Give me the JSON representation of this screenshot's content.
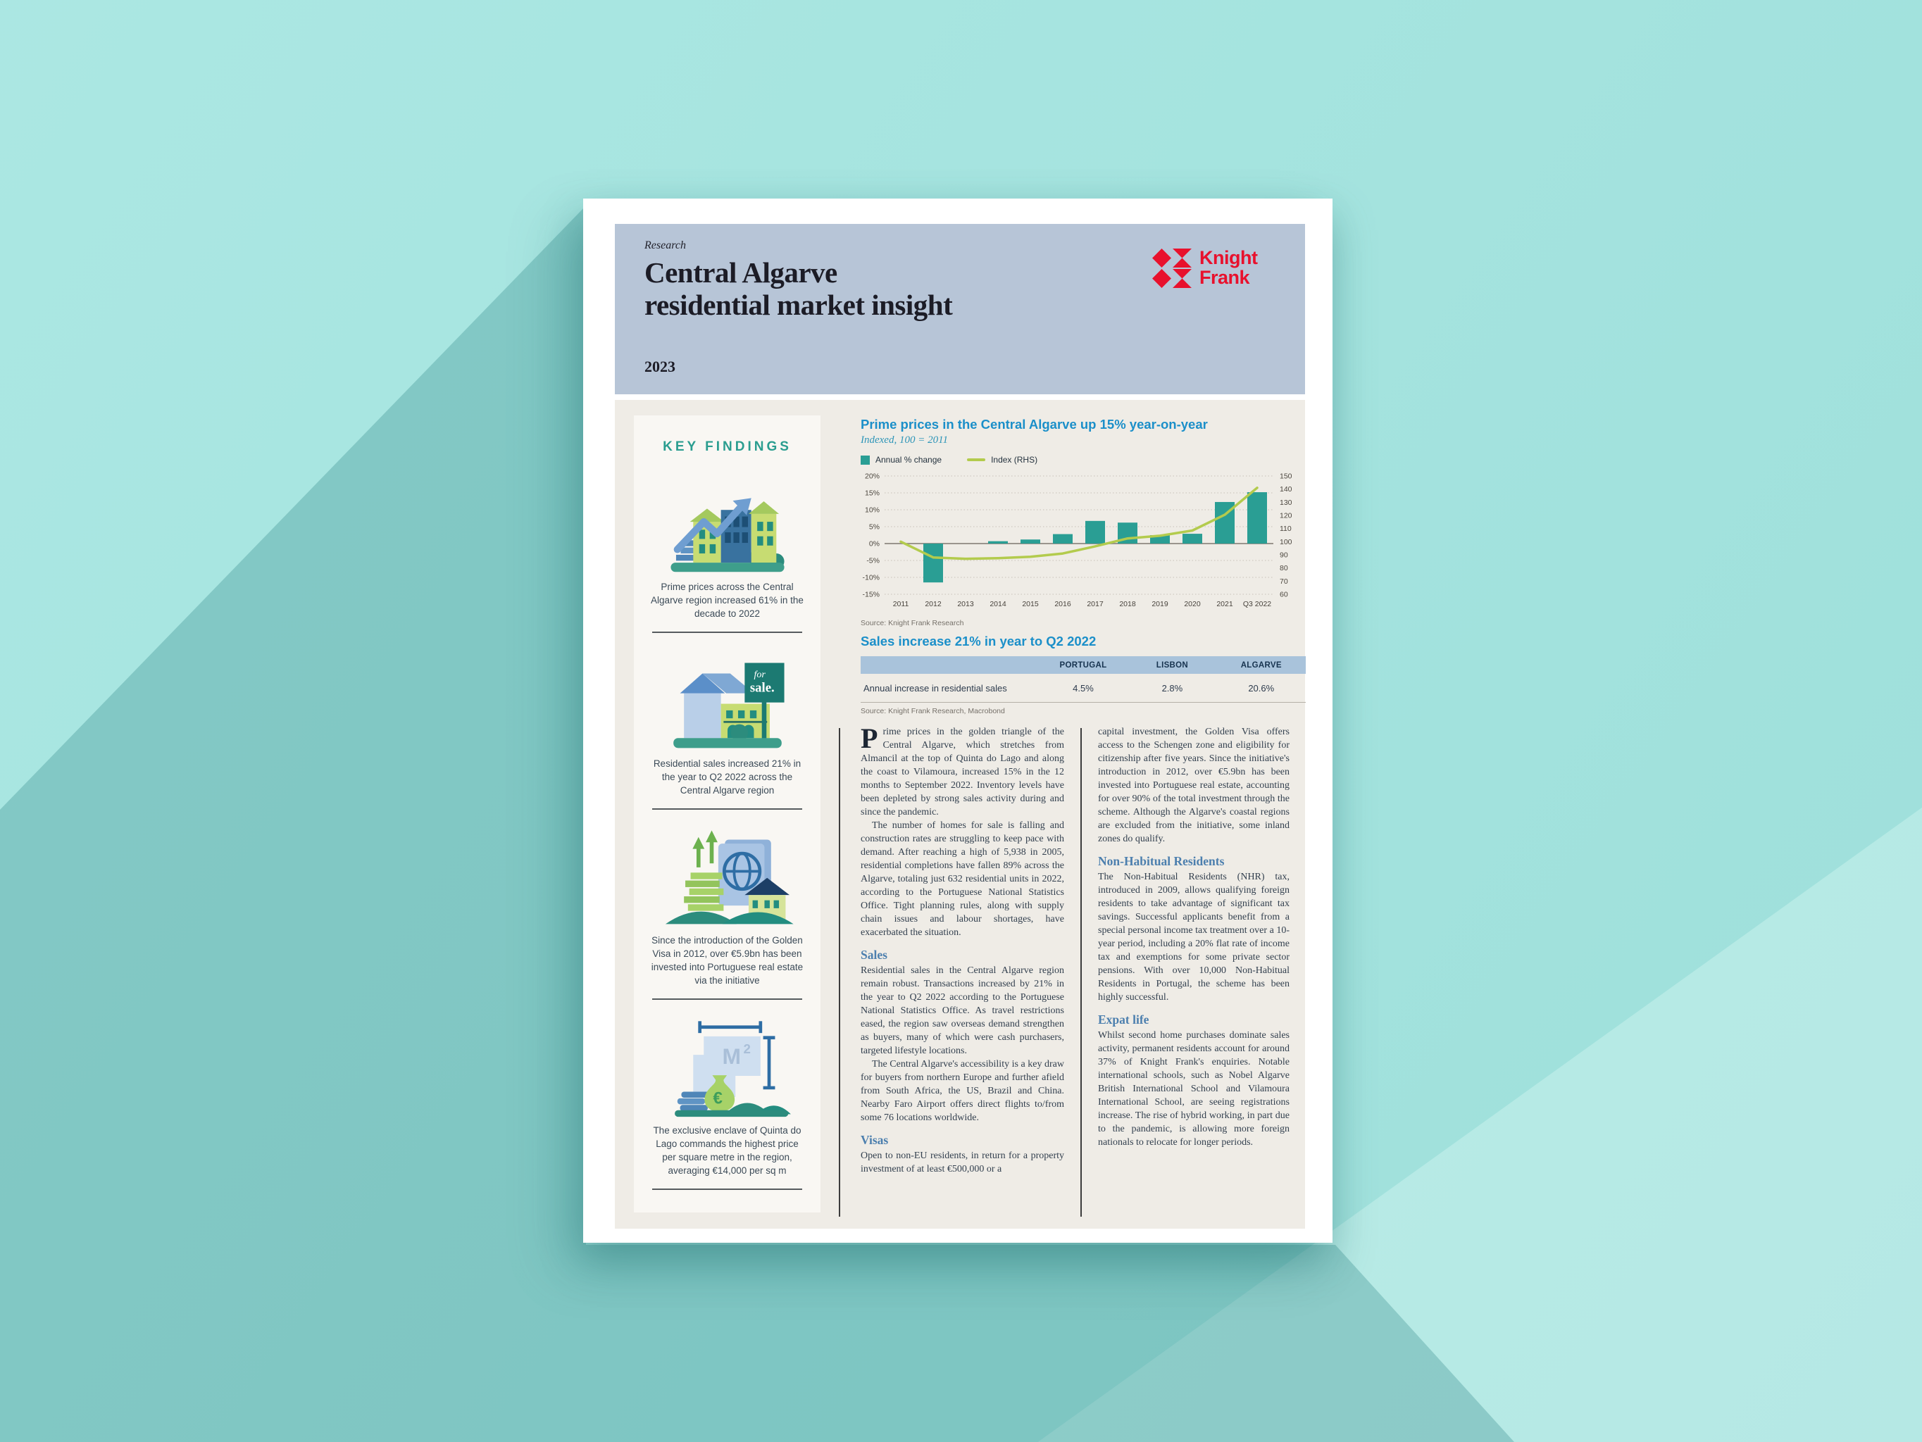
{
  "header": {
    "eyebrow": "Research",
    "title_line1": "Central Algarve",
    "title_line2": "residential market insight",
    "year": "2023",
    "logo_line1": "Knight",
    "logo_line2": "Frank"
  },
  "colors": {
    "brand_red": "#e8112d",
    "teal_bar": "#2a9e94",
    "index_line_green": "#b3cb4d",
    "heading_blue": "#1b8fc9",
    "section_heading_blue": "#4c7fae",
    "key_findings_teal": "#2a9d8f",
    "masthead_band": "#b7c5d7",
    "table_header_band": "#a9c3db",
    "page_cream": "#efece6",
    "background_turquoise": "#a6e6e1"
  },
  "sidebar": {
    "heading": "KEY FINDINGS",
    "sign": {
      "line1": "for",
      "line2": "sale."
    },
    "m2": {
      "base": "M",
      "sup": "2"
    },
    "euro": "€",
    "items": [
      {
        "icon": "houses-growth-arrow-icon",
        "text": "Prime prices across the Central Algarve region increased 61% in the decade to 2022"
      },
      {
        "icon": "house-for-sale-icon",
        "text": "Residential sales increased 21% in the year to Q2 2022 across the Central Algarve region"
      },
      {
        "icon": "golden-visa-investment-icon",
        "text": "Since the introduction of the Golden Visa in 2012, over €5.9bn has been invested into Portuguese real estate via the initiative"
      },
      {
        "icon": "price-per-square-metre-icon",
        "text": "The exclusive enclave of Quinta do Lago commands the highest price per square metre in the region, averaging €14,000 per sq m"
      }
    ]
  },
  "chart": {
    "title": "Prime prices in the Central Algarve up 15% year-on-year",
    "subtitle": "Indexed, 100 = 2011",
    "legend": [
      {
        "label": "Annual % change",
        "swatch": "square"
      },
      {
        "label": "Index (RHS)",
        "swatch": "line"
      }
    ],
    "source": "Source: Knight Frank Research"
  },
  "chart_data": {
    "type": "bar+line",
    "title": "Prime prices in the Central Algarve up 15% year-on-year",
    "subtitle": "Indexed, 100 = 2011",
    "categories": [
      "2011",
      "2012",
      "2013",
      "2014",
      "2015",
      "2016",
      "2017",
      "2018",
      "2019",
      "2020",
      "2021",
      "Q3 2022"
    ],
    "series": [
      {
        "name": "Annual % change",
        "type": "bar",
        "axis": "left",
        "color": "#2a9e94",
        "values": [
          0,
          -11.5,
          0,
          0.7,
          1.2,
          2.8,
          6.7,
          6.2,
          2.5,
          2.9,
          12.3,
          15.2
        ]
      },
      {
        "name": "Index (RHS)",
        "type": "line",
        "axis": "right",
        "color": "#b3cb4d",
        "values": [
          100,
          88,
          87,
          87.5,
          88.5,
          91,
          96.5,
          102.5,
          104.5,
          108.5,
          120.5,
          141
        ]
      }
    ],
    "left_axis": {
      "ticks": [
        "20%",
        "15%",
        "10%",
        "5%",
        "0%",
        "-5%",
        "-10%",
        "-15%"
      ],
      "tick_values": [
        20,
        15,
        10,
        5,
        0,
        -5,
        -10,
        -15
      ],
      "min": -15,
      "max": 20
    },
    "right_axis": {
      "ticks": [
        "150",
        "140",
        "130",
        "120",
        "110",
        "100",
        "90",
        "80",
        "70",
        "60"
      ],
      "tick_values": [
        150,
        140,
        130,
        120,
        110,
        100,
        90,
        80,
        70,
        60
      ],
      "min": 60,
      "max": 150
    },
    "grid": true,
    "legend_position": "top-left"
  },
  "sales_table": {
    "heading": "Sales increase 21% in year to Q2 2022",
    "columns": [
      "",
      "PORTUGAL",
      "LISBON",
      "ALGARVE"
    ],
    "rows": [
      {
        "label": "Annual increase in residential sales",
        "values": [
          "4.5%",
          "2.8%",
          "20.6%"
        ]
      }
    ],
    "source": "Source: Knight Frank Research, Macrobond"
  },
  "article": {
    "col1": [
      {
        "type": "paragraph",
        "dropcap": "P",
        "text": "rime prices in the golden triangle of the Central Algarve, which stretches from Almancil at the top of Quinta do Lago and along the coast to Vilamoura, increased 15% in the 12 months to September 2022. Inventory levels have been depleted by strong sales activity during and since the pandemic."
      },
      {
        "type": "paragraph",
        "text": "The number of homes for sale is falling and construction rates are struggling to keep pace with demand. After reaching a high of 5,938 in 2005, residential completions have fallen 89% across the Algarve, totaling just 632 residential units in 2022, according to the Portuguese National Statistics Office. Tight planning rules, along with supply chain issues and labour shortages, have exacerbated the situation."
      },
      {
        "type": "heading",
        "text": "Sales"
      },
      {
        "type": "paragraph",
        "text": "Residential sales in the Central Algarve region remain robust. Transactions increased by 21% in the year to Q2 2022 according to the Portuguese National Statistics Office. As travel restrictions eased, the region saw overseas demand strengthen as buyers, many of which were cash purchasers, targeted lifestyle locations."
      },
      {
        "type": "paragraph",
        "text": "The Central Algarve's accessibility is a key draw for buyers from northern Europe and further afield from South Africa, the US, Brazil and China. Nearby Faro Airport offers direct flights to/from some 76 locations worldwide."
      },
      {
        "type": "heading",
        "text": "Visas"
      },
      {
        "type": "paragraph",
        "text": "Open to non-EU residents, in return for a property investment of at least €500,000 or a"
      }
    ],
    "col2": [
      {
        "type": "paragraph",
        "text": "capital investment, the Golden Visa offers access to the Schengen zone and eligibility for citizenship after five years. Since the initiative's introduction in 2012, over €5.9bn has been invested into Portuguese real estate, accounting for over 90% of the total investment through the scheme. Although the Algarve's coastal regions are excluded from the initiative, some inland zones do qualify."
      },
      {
        "type": "heading",
        "text": "Non-Habitual Residents"
      },
      {
        "type": "paragraph",
        "text": "The Non-Habitual Residents (NHR) tax, introduced in 2009, allows qualifying foreign residents to take advantage of significant tax savings. Successful applicants benefit from a special personal income tax treatment over a 10-year period, including a 20% flat rate of income tax and exemptions for some private sector pensions. With over 10,000 Non-Habitual Residents in Portugal, the scheme has been highly successful."
      },
      {
        "type": "heading",
        "text": "Expat life"
      },
      {
        "type": "paragraph",
        "text": "Whilst second home purchases dominate sales activity, permanent residents account for around 37% of Knight Frank's enquiries. Notable international schools, such as Nobel Algarve British International School and Vilamoura International School, are seeing registrations increase. The rise of hybrid working, in part due to the pandemic, is allowing more foreign nationals to relocate for longer periods."
      }
    ]
  }
}
